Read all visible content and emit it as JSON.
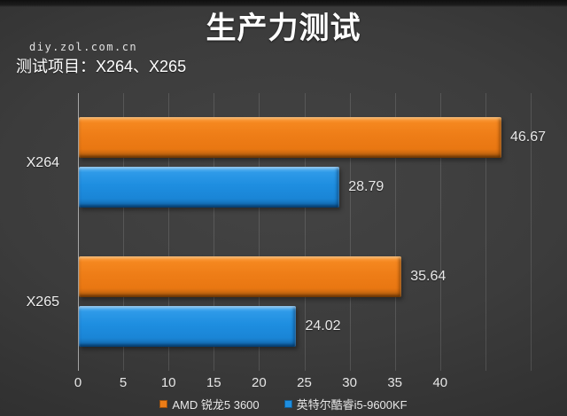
{
  "title": "生产力测试",
  "watermark": "diy.zol.com.cn",
  "subtitle": "测试项目：X264、X265",
  "chart_data": {
    "type": "bar",
    "orientation": "horizontal",
    "title": "生产力测试",
    "subtitle": "测试项目：X264、X265",
    "categories": [
      "X264",
      "X265"
    ],
    "series": [
      {
        "name": "AMD 锐龙5 3600",
        "color": "#ED7D17",
        "values": [
          46.67,
          35.64
        ]
      },
      {
        "name": "英特尔酷睿i5-9600KF",
        "color": "#1E8EE0",
        "values": [
          28.79,
          24.02
        ]
      }
    ],
    "value_labels": [
      "46.67",
      "28.79",
      "35.64",
      "24.02"
    ],
    "xlabel": "",
    "ylabel": "",
    "axis": {
      "min": 0,
      "max": 50,
      "tick_step": 5,
      "tick_labels": [
        "0",
        "5",
        "10",
        "15",
        "20",
        "25",
        "30",
        "35",
        "40"
      ]
    },
    "grid": true,
    "legend_position": "bottom",
    "background": "#333333",
    "text_color": "#ffffff"
  }
}
